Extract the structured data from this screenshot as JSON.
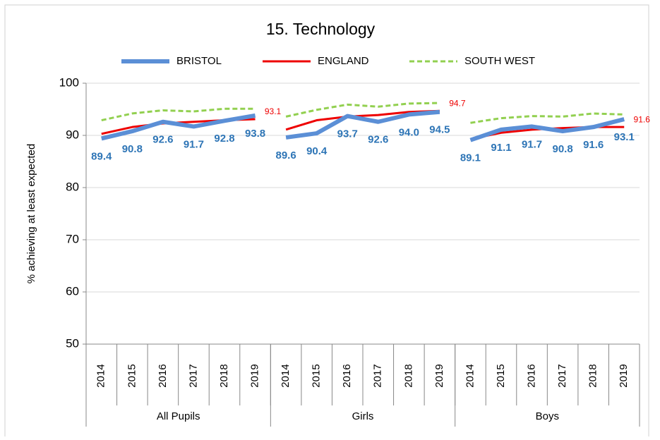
{
  "chart_data": {
    "type": "line",
    "title": "15. Technology",
    "ylabel": "% achieving at least expected",
    "ylim": [
      50,
      100
    ],
    "yticks": [
      50,
      60,
      70,
      80,
      90,
      100
    ],
    "grid": true,
    "groups": [
      {
        "name": "All Pupils",
        "categories": [
          "2014",
          "2015",
          "2016",
          "2017",
          "2018",
          "2019"
        ]
      },
      {
        "name": "Girls",
        "categories": [
          "2014",
          "2015",
          "2016",
          "2017",
          "2018",
          "2019"
        ]
      },
      {
        "name": "Boys",
        "categories": [
          "2014",
          "2015",
          "2016",
          "2017",
          "2018",
          "2019"
        ]
      }
    ],
    "series": [
      {
        "name": "BRISTOL",
        "color": "#5b8fd6",
        "style": "solid-thick",
        "values": [
          [
            89.4,
            90.8,
            92.6,
            91.7,
            92.8,
            93.8
          ],
          [
            89.6,
            90.4,
            93.7,
            92.6,
            94.0,
            94.5
          ],
          [
            89.1,
            91.1,
            91.7,
            90.8,
            91.6,
            93.1
          ]
        ],
        "value_labels": [
          [
            "89.4",
            "90.8",
            "92.6",
            "91.7",
            "92.8",
            "93.8"
          ],
          [
            "89.6",
            "90.4",
            "93.7",
            "92.6",
            "94.0",
            "94.5"
          ],
          [
            "89.1",
            "91.1",
            "91.7",
            "90.8",
            "91.6",
            "93.1"
          ]
        ],
        "label_color": "#2e75b6"
      },
      {
        "name": "ENGLAND",
        "color": "#ee0000",
        "style": "solid",
        "values": [
          [
            90.3,
            91.6,
            92.3,
            92.6,
            92.9,
            93.1
          ],
          [
            91.1,
            92.9,
            93.6,
            93.9,
            94.5,
            94.7
          ],
          [
            89.3,
            90.5,
            91.1,
            91.4,
            91.6,
            91.6
          ]
        ],
        "value_labels": [
          [
            null,
            null,
            null,
            null,
            null,
            "93.1"
          ],
          [
            null,
            null,
            null,
            null,
            null,
            "94.7"
          ],
          [
            null,
            null,
            null,
            null,
            null,
            "91.6"
          ]
        ],
        "label_color": "#ee0000"
      },
      {
        "name": "SOUTH WEST",
        "color": "#92d050",
        "style": "dashed",
        "values": [
          [
            92.9,
            94.2,
            94.8,
            94.6,
            95.1,
            95.1
          ],
          [
            93.6,
            94.9,
            95.9,
            95.5,
            96.1,
            96.2
          ],
          [
            92.4,
            93.3,
            93.7,
            93.6,
            94.2,
            94.0
          ]
        ]
      }
    ]
  }
}
